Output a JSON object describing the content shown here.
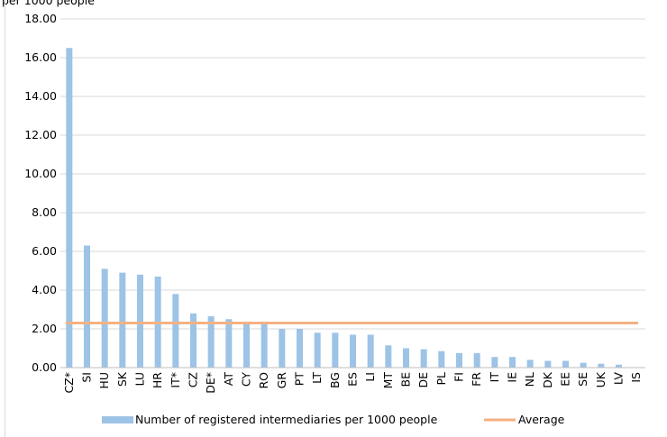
{
  "header": {
    "partial_label": "per 1000 people"
  },
  "chart_data": {
    "type": "bar",
    "categories": [
      "CZ*",
      "SI",
      "HU",
      "SK",
      "LU",
      "HR",
      "IT*",
      "CZ",
      "DE*",
      "AT",
      "CY",
      "RO",
      "GR",
      "PT",
      "LT",
      "BG",
      "ES",
      "LI",
      "MT",
      "BE",
      "DE",
      "PL",
      "FI",
      "FR",
      "IT",
      "IE",
      "NL",
      "DK",
      "EE",
      "SE",
      "UK",
      "LV",
      "IS"
    ],
    "series": [
      {
        "name": "Number of registered intermediaries per 1000 people",
        "type": "bar",
        "color": "#9dc3e6",
        "values": [
          16.5,
          6.3,
          5.1,
          4.9,
          4.8,
          4.7,
          3.8,
          2.8,
          2.65,
          2.5,
          2.3,
          2.25,
          2.0,
          2.0,
          1.8,
          1.8,
          1.7,
          1.7,
          1.15,
          1.0,
          0.95,
          0.85,
          0.75,
          0.75,
          0.55,
          0.55,
          0.4,
          0.35,
          0.35,
          0.25,
          0.2,
          0.15,
          0.0
        ]
      },
      {
        "name": "Average",
        "type": "line",
        "color": "#f4b183",
        "value": 2.3
      }
    ],
    "ylim": [
      0,
      18
    ],
    "yticks": [
      "0.00",
      "2.00",
      "4.00",
      "6.00",
      "8.00",
      "10.00",
      "12.00",
      "14.00",
      "16.00",
      "18.00"
    ],
    "grid": true,
    "legend_position": "bottom"
  }
}
